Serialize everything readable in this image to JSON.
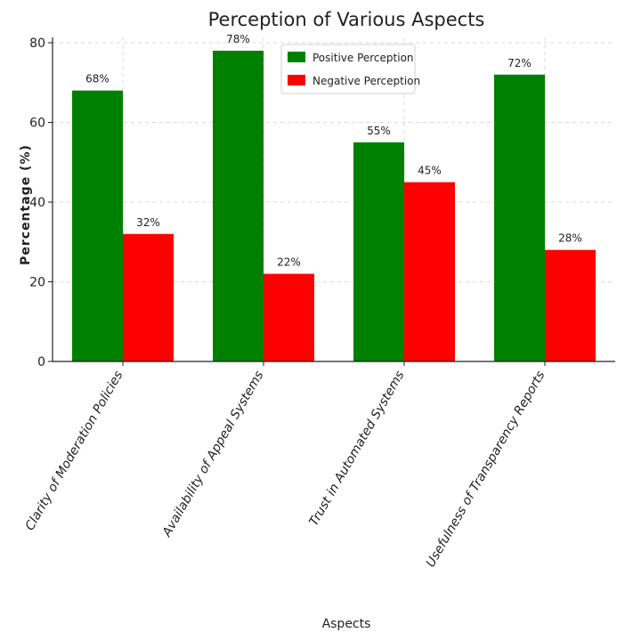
{
  "chart_data": {
    "type": "bar",
    "title": "Perception of Various Aspects",
    "xlabel": "Aspects",
    "ylabel": "Percentage (%)",
    "categories": [
      "Clarity of Moderation Policies",
      "Availability of Appeal Systems",
      "Trust in Automated Systems",
      "Usefulness of Transparency Reports"
    ],
    "series": [
      {
        "name": "Positive Perception",
        "values": [
          68,
          78,
          55,
          72
        ],
        "color": "#008000",
        "labels": [
          "68%",
          "78%",
          "55%",
          "72%"
        ]
      },
      {
        "name": "Negative Perception",
        "values": [
          32,
          22,
          45,
          28
        ],
        "color": "#ff0000",
        "labels": [
          "32%",
          "22%",
          "45%",
          "28%"
        ]
      }
    ],
    "ylim": [
      0,
      80
    ],
    "yticks": [
      0,
      20,
      40,
      60,
      80
    ],
    "grid": true,
    "legend_position": "top-right"
  }
}
